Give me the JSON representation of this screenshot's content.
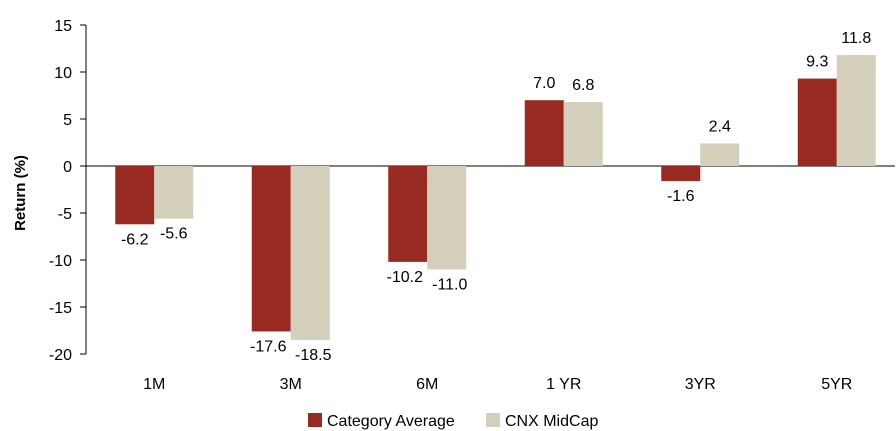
{
  "chart_data": {
    "type": "bar",
    "categories": [
      "1M",
      "3M",
      "6M",
      "1 YR",
      "3YR",
      "5YR"
    ],
    "series": [
      {
        "name": "Category Average",
        "color": "#992a22",
        "values": [
          -6.2,
          -17.6,
          -10.2,
          7.0,
          -1.6,
          9.3
        ],
        "labels": [
          "-6.2",
          "-17.6",
          "-10.2",
          "7.0",
          "-1.6",
          "9.3"
        ]
      },
      {
        "name": "CNX MidCap",
        "color": "#d3cfbb",
        "values": [
          -5.6,
          -18.5,
          -11.0,
          6.8,
          2.4,
          11.8
        ],
        "labels": [
          "-5.6",
          "-18.5",
          "-11.0",
          "6.8",
          "2.4",
          "11.8"
        ]
      }
    ],
    "ylabel": "Return (%)",
    "xlabel": "",
    "title": "",
    "ylim": [
      -20,
      15
    ],
    "yticks": [
      15,
      10,
      5,
      0,
      -5,
      -10,
      -15,
      -20
    ],
    "ytick_labels": [
      "15",
      "10",
      "5",
      "0",
      "-5",
      "-10",
      "-15",
      "-20"
    ],
    "grid": false,
    "legend_position": "bottom"
  }
}
